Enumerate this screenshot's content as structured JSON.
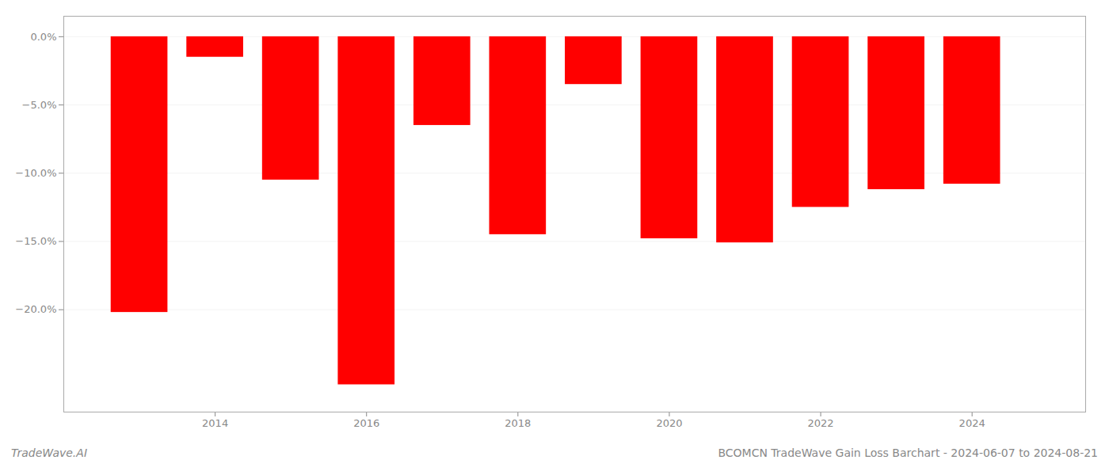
{
  "chart_data": {
    "type": "bar",
    "title": "BCOMCN TradeWave Gain Loss Barchart - 2024-06-07 to 2024-08-21",
    "annotations": [
      "TradeWave.AI"
    ],
    "x": [
      2013,
      2014,
      2015,
      2016,
      2017,
      2018,
      2019,
      2020,
      2021,
      2022,
      2023,
      2024
    ],
    "values": [
      -20.2,
      -1.5,
      -10.5,
      -25.5,
      -6.5,
      -14.5,
      -3.5,
      -14.8,
      -15.1,
      -12.5,
      -11.2,
      -10.8
    ],
    "color": "#ff0000",
    "xlim": [
      2012.0,
      2025.5
    ],
    "xticks": [
      2014,
      2016,
      2018,
      2020,
      2022,
      2024
    ],
    "ylim": [
      -27.5,
      1.5
    ],
    "yticks": [
      {
        "value": 0.0,
        "label": "0.0%"
      },
      {
        "value": -5.0,
        "label": "−5.0%"
      },
      {
        "value": -10.0,
        "label": "−10.0%"
      },
      {
        "value": -15.0,
        "label": "−15.0%"
      },
      {
        "value": -20.0,
        "label": "−20.0%"
      }
    ],
    "grid": true
  }
}
